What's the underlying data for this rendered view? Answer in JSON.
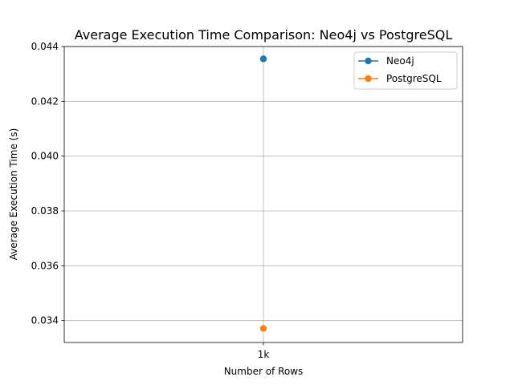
{
  "chart_data": {
    "type": "line",
    "title": "Average Execution Time Comparison: Neo4j vs PostgreSQL",
    "xlabel": "Number of Rows",
    "ylabel": "Average Execution Time (s)",
    "categories": [
      "1k"
    ],
    "ylim": [
      0.0332,
      0.044
    ],
    "yticks": [
      "0.034",
      "0.036",
      "0.038",
      "0.040",
      "0.042",
      "0.044"
    ],
    "grid": true,
    "legend_position": "top-right",
    "series": [
      {
        "name": "Neo4j",
        "values": [
          0.04355
        ],
        "color": "#1f77b4",
        "marker": "circle"
      },
      {
        "name": "PostgreSQL",
        "values": [
          0.03371
        ],
        "color": "#ff7f0e",
        "marker": "circle"
      }
    ]
  }
}
